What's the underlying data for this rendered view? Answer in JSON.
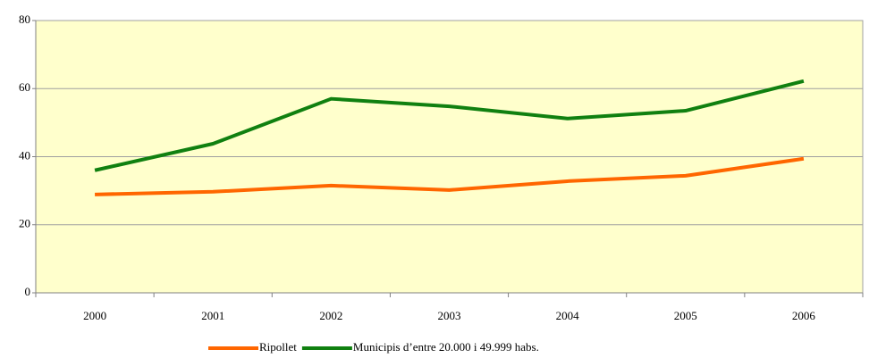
{
  "chart_data": {
    "type": "line",
    "categories": [
      "2000",
      "2001",
      "2002",
      "2003",
      "2004",
      "2005",
      "2006"
    ],
    "series": [
      {
        "name": "Ripollet",
        "color": "#ff6600",
        "values": [
          28.9,
          29.7,
          31.5,
          30.2,
          32.8,
          34.4,
          39.4
        ]
      },
      {
        "name": "Municipis d’entre 20.000 i 49.999 habs.",
        "color": "#108010",
        "values": [
          36,
          43.8,
          57,
          54.8,
          51.2,
          53.5,
          62.2
        ]
      }
    ],
    "ylim": [
      0,
      80
    ],
    "yticks": [
      0,
      20,
      40,
      60,
      80
    ],
    "grid": true,
    "legend": "bottom"
  }
}
